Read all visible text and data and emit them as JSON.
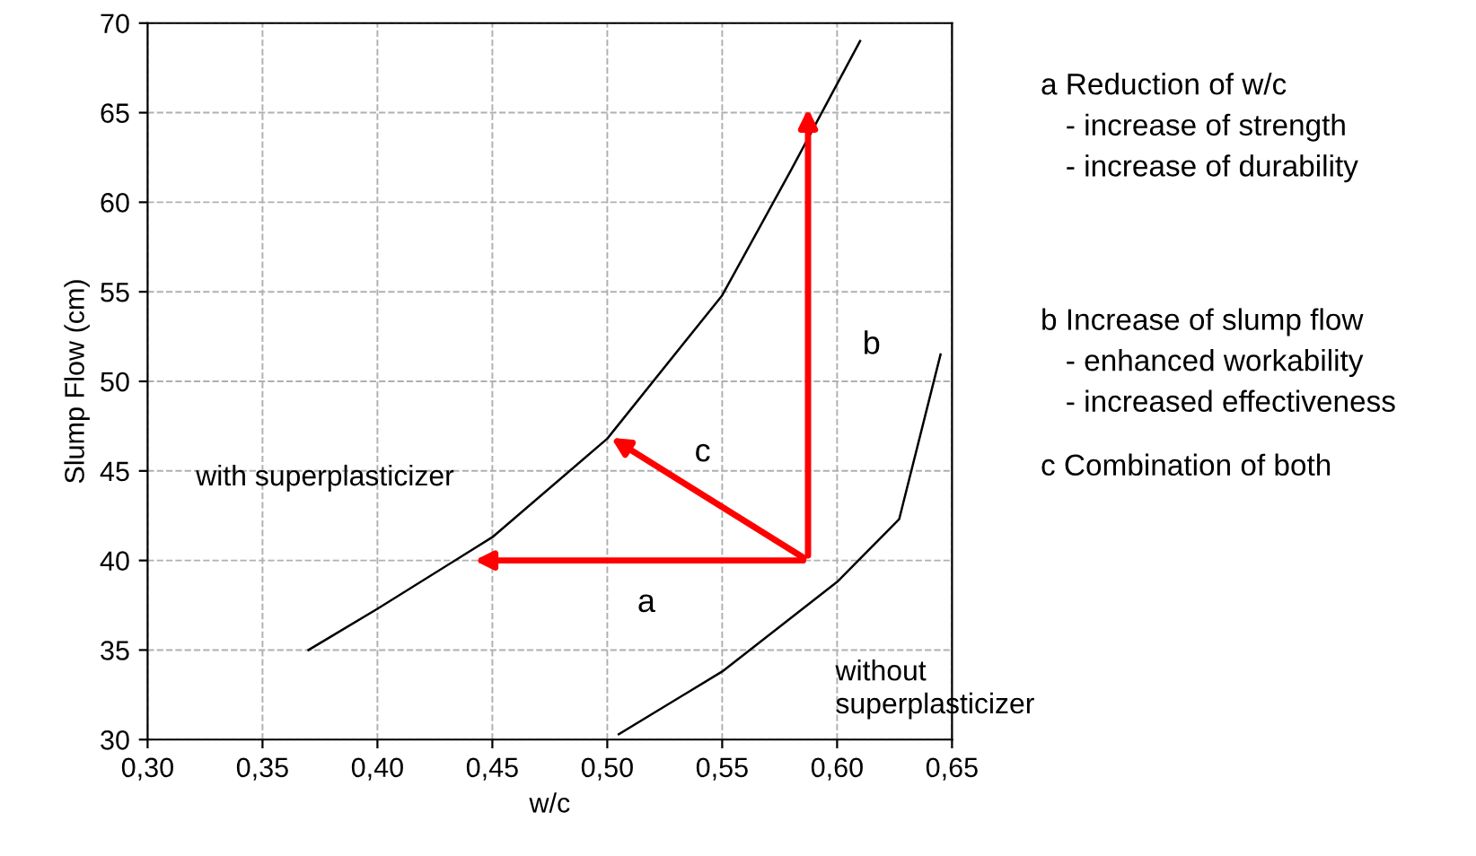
{
  "chart_data": {
    "type": "line",
    "xlabel": "w/c",
    "ylabel": "Slump Flow (cm)",
    "series": [
      {
        "color": "#000000",
        "x": [
          0.37,
          0.4,
          0.45,
          0.5,
          0.55,
          0.58,
          0.61
        ],
        "values": [
          35,
          37.3,
          41.3,
          46.8,
          54.8,
          61.8,
          69
        ]
      },
      {
        "color": "#000000",
        "x": [
          0.505,
          0.55,
          0.6,
          0.627,
          0.645
        ],
        "values": [
          30.3,
          33.8,
          38.8,
          42.3,
          51.5
        ]
      }
    ],
    "xlim": [
      0.3,
      0.65
    ],
    "ylim": [
      30,
      70
    ],
    "xticks": [
      {
        "value": 0.3,
        "label": "0,30"
      },
      {
        "value": 0.35,
        "label": "0,35"
      },
      {
        "value": 0.4,
        "label": "0,40"
      },
      {
        "value": 0.45,
        "label": "0,45"
      },
      {
        "value": 0.5,
        "label": "0,50"
      },
      {
        "value": 0.55,
        "label": "0,55"
      },
      {
        "value": 0.6,
        "label": "0,60"
      },
      {
        "value": 0.65,
        "label": "0,65"
      }
    ],
    "yticks": [
      30,
      35,
      40,
      45,
      50,
      55,
      60,
      65,
      70
    ],
    "grid": true,
    "legend": false,
    "marker": "none",
    "line_style": "solid",
    "annotations": [
      "a",
      "b",
      "c",
      "with superplasticizer",
      "without\nsuperplasticizer",
      "a Reduction of w/c\n   - increase of strength\n   - increase of durability",
      "b Increase of slump flow\n   - enhanced workability\n   - increased effectiveness",
      "c Combination of both"
    ]
  }
}
